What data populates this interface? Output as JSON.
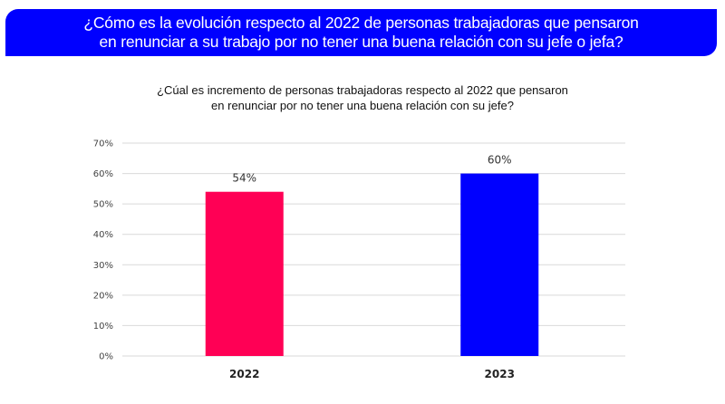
{
  "banner": {
    "line1": "¿Cómo es la evolución respecto al 2022 de personas trabajadoras que pensaron",
    "line2": "en renunciar a su trabajo por no tener una buena relación con su jefe o jefa?",
    "background": "#0000ff"
  },
  "chart_data": {
    "type": "bar",
    "title_lines": [
      "¿Cúal es incremento de personas trabajadoras respecto al 2022 que pensaron",
      "en renunciar por no tener una buena relación con su jefe?"
    ],
    "categories": [
      "2022",
      "2023"
    ],
    "values": [
      54,
      60
    ],
    "data_labels": [
      "54%",
      "60%"
    ],
    "colors": [
      "#ff0055",
      "#0000ff"
    ],
    "xlabel": "",
    "ylabel": "",
    "ylim": [
      0,
      70
    ],
    "yticks": [
      0,
      10,
      20,
      30,
      40,
      50,
      60,
      70
    ],
    "ytick_labels": [
      "0%",
      "10%",
      "20%",
      "30%",
      "40%",
      "50%",
      "60%",
      "70%"
    ],
    "grid": true,
    "legend": "none"
  }
}
